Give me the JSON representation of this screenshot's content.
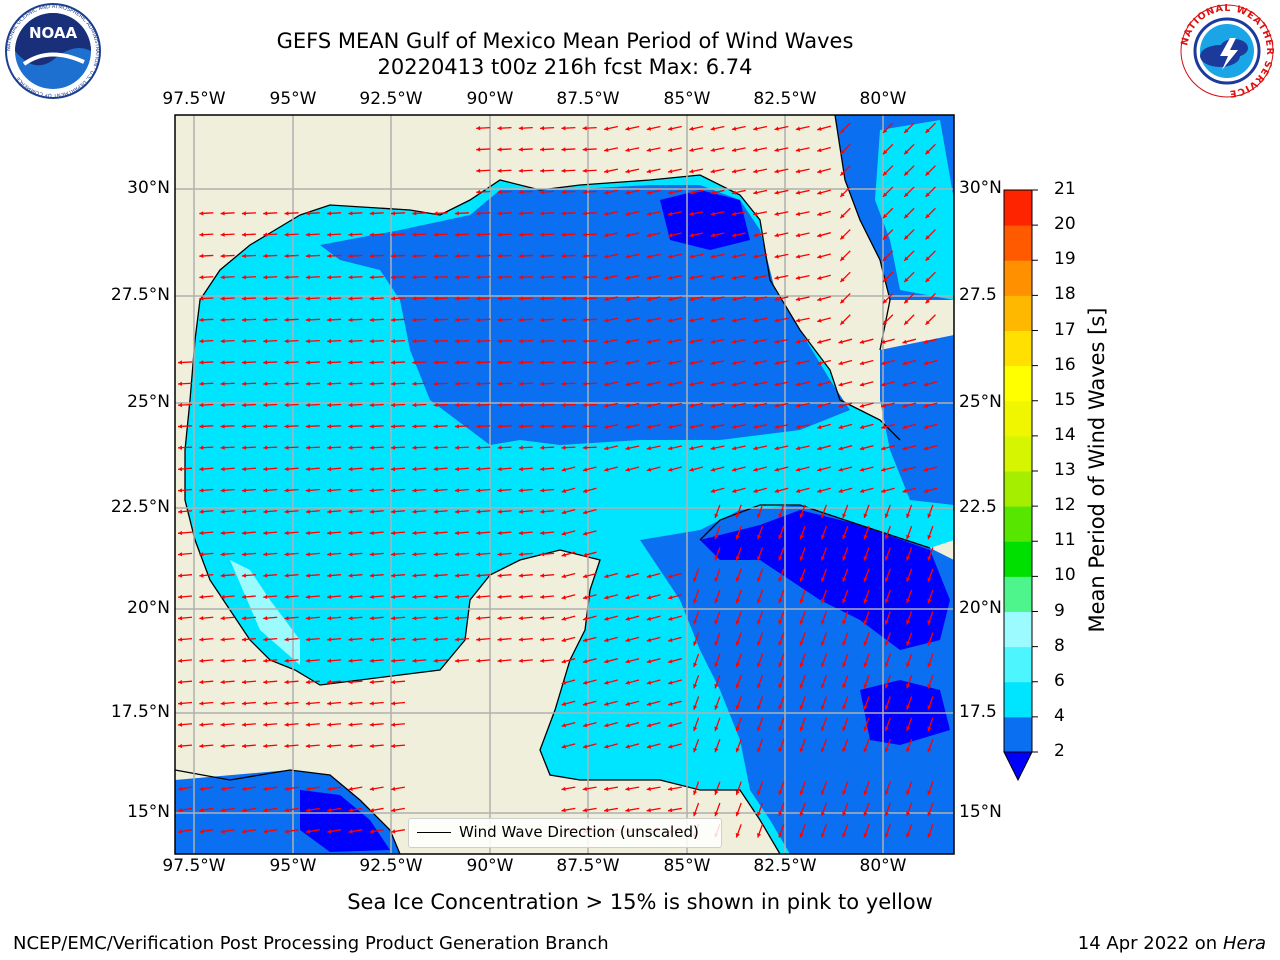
{
  "header": {
    "title_line1": "GEFS MEAN Gulf of Mexico Mean Period of Wind Waves",
    "title_line2": "20220413 t00z 216h fcst   Max: 6.74"
  },
  "logos": {
    "noaa": "NOAA",
    "noaa_ring": "NATIONAL OCEANIC AND ATMOSPHERIC ADMINISTRATION · U.S. DEPARTMENT OF COMMERCE",
    "nws_ring": "NATIONAL WEATHER SERVICE"
  },
  "map": {
    "lon_labels": [
      "97.5°W",
      "95°W",
      "92.5°W",
      "90°W",
      "87.5°W",
      "85°W",
      "82.5°W",
      "80°W"
    ],
    "lat_labels_left": [
      "30°N",
      "27.5°N",
      "25°N",
      "22.5°N",
      "20°N",
      "17.5°N",
      "15°N"
    ],
    "lat_labels_right": [
      "30°N",
      "27.5",
      "25°N",
      "22.5",
      "20°N",
      "17.5",
      "15°N"
    ],
    "land_color": "#efefdc",
    "arrow_color": "#ff0000",
    "legend_label": "Wind Wave Direction (unscaled)"
  },
  "colorbar": {
    "title": "Mean Period of Wind Waves [s]",
    "ticks": [
      "2",
      "4",
      "6",
      "8",
      "9",
      "10",
      "11",
      "12",
      "13",
      "14",
      "15",
      "16",
      "17",
      "18",
      "19",
      "20",
      "21"
    ],
    "colors": [
      "#0a6ff0",
      "#00e5ff",
      "#4df5ff",
      "#9cfbff",
      "#4df58c",
      "#00e000",
      "#56e600",
      "#a5ee00",
      "#d6f500",
      "#f0f500",
      "#ffff00",
      "#ffe000",
      "#ffb800",
      "#ff9000",
      "#ff5a00",
      "#ff2400"
    ],
    "under_color": "#0000ff"
  },
  "notes": {
    "sea_ice": "Sea Ice Concentration > 15% is shown in pink to yellow",
    "credit_left": "NCEP/EMC/Verification Post Processing Product Generation Branch",
    "credit_date": "14 Apr 2022 on ",
    "credit_host": "Hera"
  }
}
